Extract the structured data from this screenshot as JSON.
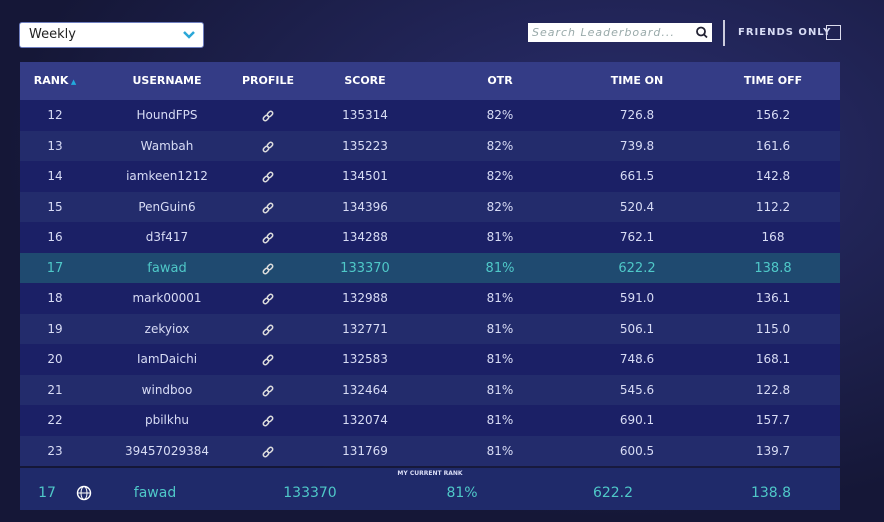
{
  "controls": {
    "period": "Weekly",
    "search_placeholder": "Search Leaderboard...",
    "friends_only": "FRIENDS ONLY"
  },
  "table": {
    "headers": [
      "RANK",
      "USERNAME",
      "PROFILE",
      "SCORE",
      "OTR",
      "TIME ON",
      "TIME OFF"
    ],
    "highlight_row": 5,
    "rows": [
      [
        "12",
        "HoundFPS",
        "135314",
        "82%",
        "726.8",
        "156.2"
      ],
      [
        "13",
        "Wambah",
        "135223",
        "82%",
        "739.8",
        "161.6"
      ],
      [
        "14",
        "iamkeen1212",
        "134501",
        "82%",
        "661.5",
        "142.8"
      ],
      [
        "15",
        "PenGuin6",
        "134396",
        "82%",
        "520.4",
        "112.2"
      ],
      [
        "16",
        "d3f417",
        "134288",
        "81%",
        "762.1",
        "168"
      ],
      [
        "17",
        "fawad",
        "133370",
        "81%",
        "622.2",
        "138.8"
      ],
      [
        "18",
        "mark00001",
        "132988",
        "81%",
        "591.0",
        "136.1"
      ],
      [
        "19",
        "zekyiox",
        "132771",
        "81%",
        "506.1",
        "115.0"
      ],
      [
        "20",
        "IamDaichi",
        "132583",
        "81%",
        "748.6",
        "168.1"
      ],
      [
        "21",
        "windboo",
        "132464",
        "81%",
        "545.6",
        "122.8"
      ],
      [
        "22",
        "pbilkhu",
        "132074",
        "81%",
        "690.1",
        "157.7"
      ],
      [
        "23",
        "39457029384",
        "131769",
        "81%",
        "600.5",
        "139.7"
      ]
    ]
  },
  "current_rank": {
    "label": "MY CURRENT RANK",
    "row": [
      "17",
      "fawad",
      "133370",
      "81%",
      "622.2",
      "138.8"
    ]
  }
}
